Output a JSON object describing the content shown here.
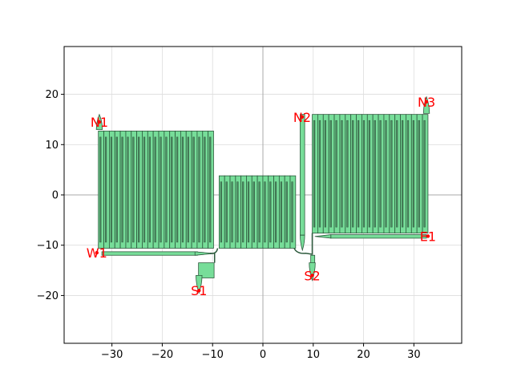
{
  "chart_data": {
    "type": "layout",
    "title": "",
    "xlabel": "",
    "ylabel": "",
    "xlim": [
      -39.5,
      39.5
    ],
    "ylim": [
      -29.5,
      29.5
    ],
    "grid": true,
    "x_ticks": [
      -30,
      -20,
      -10,
      0,
      10,
      20,
      30
    ],
    "y_ticks": [
      -20,
      -10,
      0,
      10,
      20
    ],
    "x_tick_labels": [
      "−30",
      "−20",
      "−10",
      "0",
      "10",
      "20",
      "30"
    ],
    "y_tick_labels": [
      "−20",
      "−10",
      "0",
      "10",
      "20"
    ],
    "colors": {
      "fill": "#77dd99",
      "stroke": "#2d5a3d",
      "grid": "#dddddd",
      "axis_line": "#aaaaaa",
      "port": "#ff0000"
    },
    "ports": [
      {
        "name": "N1",
        "x": -32.5,
        "y": 14.5
      },
      {
        "name": "W1",
        "x": -33.0,
        "y": -11.5
      },
      {
        "name": "S1",
        "x": -12.7,
        "y": -19.0
      },
      {
        "name": "N2",
        "x": 7.8,
        "y": 15.5
      },
      {
        "name": "S2",
        "x": 9.8,
        "y": -16.0
      },
      {
        "name": "N3",
        "x": 32.5,
        "y": 18.5
      },
      {
        "name": "E1",
        "x": 32.8,
        "y": -8.2
      }
    ],
    "meanders": [
      {
        "name": "block-left",
        "x0": -32.7,
        "x1": -9.8,
        "y0": -10.6,
        "y1": 12.7,
        "n": 21
      },
      {
        "name": "block-middle",
        "x0": -8.7,
        "x1": 6.5,
        "y0": -10.6,
        "y1": 3.8,
        "n": 14
      },
      {
        "name": "block-right",
        "x0": 9.8,
        "x1": 32.8,
        "y0": -7.6,
        "y1": 16.0,
        "n": 21
      }
    ],
    "rects": [
      {
        "name": "waveguide-w1",
        "x0": -32.0,
        "x1": -13.0,
        "y0": -12.0,
        "y1": -11.3
      },
      {
        "name": "waveguide-e1",
        "x0": 13.5,
        "x1": 32.5,
        "y0": -8.6,
        "y1": -7.9
      },
      {
        "name": "waveguide-n2",
        "x0": 7.4,
        "x1": 8.3,
        "y0": -8.0,
        "y1": 16.0
      },
      {
        "name": "pad-s1",
        "x0": -12.8,
        "x1": -9.7,
        "y0": -16.5,
        "y1": -13.5
      },
      {
        "name": "connector-s2",
        "x0": 9.5,
        "x1": 10.3,
        "y0": -14.0,
        "y1": -12.0
      }
    ],
    "tapers": [
      {
        "name": "taper-n1",
        "x": -32.5,
        "y_base": 13.0,
        "y_tip": 16.0,
        "w": 1.2,
        "dir": "up"
      },
      {
        "name": "taper-n3",
        "x": 32.5,
        "y_base": 16.2,
        "y_tip": 19.5,
        "w": 1.2,
        "dir": "up"
      },
      {
        "name": "taper-s1",
        "x": -12.7,
        "y_base": -16.0,
        "y_tip": -19.5,
        "w": 1.2,
        "dir": "down"
      },
      {
        "name": "taper-s2",
        "x": 9.8,
        "y_base": -13.5,
        "y_tip": -17.0,
        "w": 1.2,
        "dir": "down"
      },
      {
        "name": "taper-w1-end",
        "x": -13.5,
        "y_base": -11.65,
        "y_tip": -10.5,
        "w": 0.7,
        "dir": "right"
      },
      {
        "name": "taper-e1-start",
        "x": 13.5,
        "y_base": -8.25,
        "y_tip": 10.5,
        "w": 0.7,
        "dir": "left"
      },
      {
        "name": "taper-n2-bottom",
        "x": 7.85,
        "y_base": -8.0,
        "y_tip": -11.0,
        "w": 0.9,
        "dir": "down"
      }
    ]
  }
}
